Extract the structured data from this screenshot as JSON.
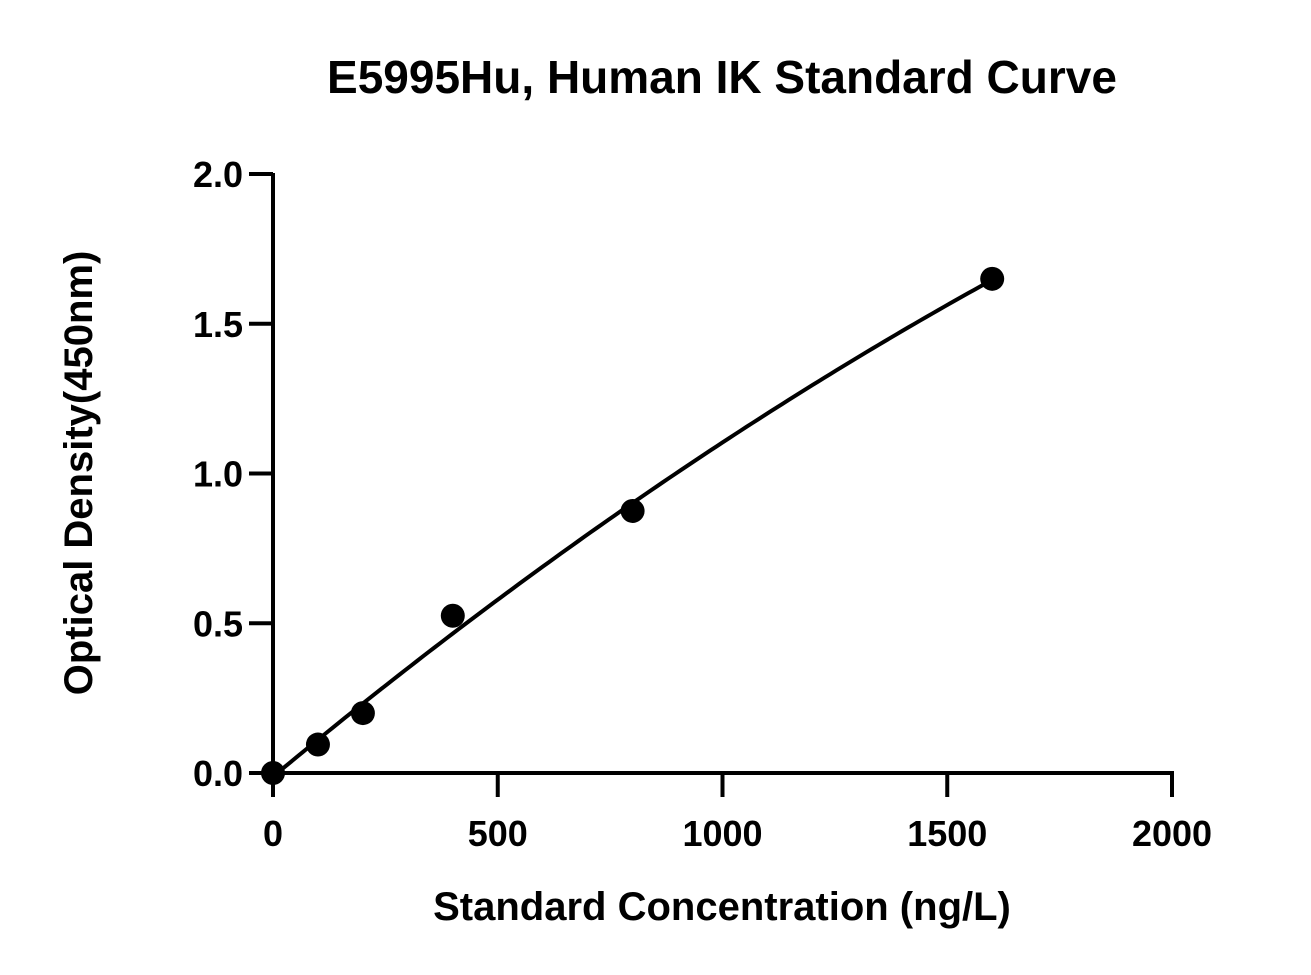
{
  "chart_data": {
    "type": "scatter",
    "title": "E5995Hu, Human IK Standard Curve",
    "xlabel": "Standard Concentration (ng/L)",
    "ylabel": "Optical Density(450nm)",
    "xlim": [
      0,
      2000
    ],
    "ylim": [
      0,
      2.0
    ],
    "x_ticks": [
      0,
      500,
      1000,
      1500,
      2000
    ],
    "x_tick_labels": [
      "0",
      "500",
      "1000",
      "1500",
      "2000"
    ],
    "y_ticks": [
      0,
      0.5,
      1.0,
      1.5,
      2.0
    ],
    "y_tick_labels": [
      "0.0",
      "0.5",
      "1.0",
      "1.5",
      "2.0"
    ],
    "grid": false,
    "legend": "none",
    "series": [
      {
        "x": [
          0,
          100,
          200,
          400,
          800,
          1600
        ],
        "y": [
          0.0,
          0.095,
          0.2,
          0.525,
          0.875,
          1.65
        ],
        "marker": "circle",
        "color": "#000000",
        "fit_line": true
      }
    ]
  }
}
